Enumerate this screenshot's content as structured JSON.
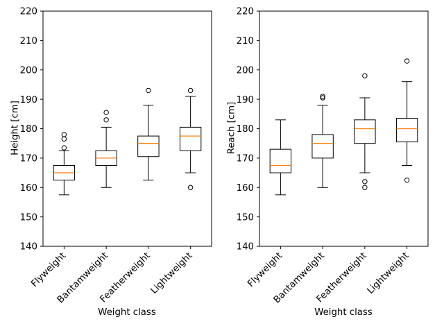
{
  "figure": {
    "background": "#ffffff"
  },
  "colors": {
    "median": "#ff7f0e",
    "box_stroke": "#000000",
    "box_fill": "#ffffff"
  },
  "chart_data": [
    {
      "type": "boxplot",
      "title": "",
      "xlabel": "Weight class",
      "ylabel": "Height [cm]",
      "ylim": [
        140,
        220
      ],
      "yticks": [
        140,
        150,
        160,
        170,
        180,
        190,
        200,
        210,
        220
      ],
      "grid": false,
      "categories": [
        "Flyweight",
        "Bantamweight",
        "Featherweight",
        "Lightweight"
      ],
      "boxes": [
        {
          "whislo": 157.5,
          "q1": 162.5,
          "med": 165.0,
          "q3": 167.5,
          "whishi": 172.5,
          "fliers": [
            173.5,
            176.5,
            178.0
          ]
        },
        {
          "whislo": 160.0,
          "q1": 167.5,
          "med": 170.0,
          "q3": 172.5,
          "whishi": 180.5,
          "fliers": [
            183.0,
            185.5
          ]
        },
        {
          "whislo": 162.5,
          "q1": 170.5,
          "med": 175.0,
          "q3": 177.5,
          "whishi": 188.0,
          "fliers": [
            193.0
          ]
        },
        {
          "whislo": 165.0,
          "q1": 172.5,
          "med": 177.5,
          "q3": 180.5,
          "whishi": 191.0,
          "fliers": [
            193.0,
            160.0
          ]
        }
      ]
    },
    {
      "type": "boxplot",
      "title": "",
      "xlabel": "Weight class",
      "ylabel": "Reach [cm]",
      "ylim": [
        140,
        220
      ],
      "yticks": [
        140,
        150,
        160,
        170,
        180,
        190,
        200,
        210,
        220
      ],
      "grid": false,
      "categories": [
        "Flyweight",
        "Bantamweight",
        "Featherweight",
        "Lightweight"
      ],
      "boxes": [
        {
          "whislo": 157.5,
          "q1": 165.0,
          "med": 167.5,
          "q3": 173.0,
          "whishi": 183.0,
          "fliers": []
        },
        {
          "whislo": 160.0,
          "q1": 170.0,
          "med": 175.0,
          "q3": 178.0,
          "whishi": 188.0,
          "fliers": [
            190.5,
            191.0
          ]
        },
        {
          "whislo": 165.0,
          "q1": 175.0,
          "med": 180.0,
          "q3": 183.0,
          "whishi": 190.5,
          "fliers": [
            198.0,
            162.0,
            160.0
          ]
        },
        {
          "whislo": 167.5,
          "q1": 175.5,
          "med": 180.0,
          "q3": 183.5,
          "whishi": 196.0,
          "fliers": [
            203.0,
            162.5
          ]
        }
      ]
    }
  ]
}
